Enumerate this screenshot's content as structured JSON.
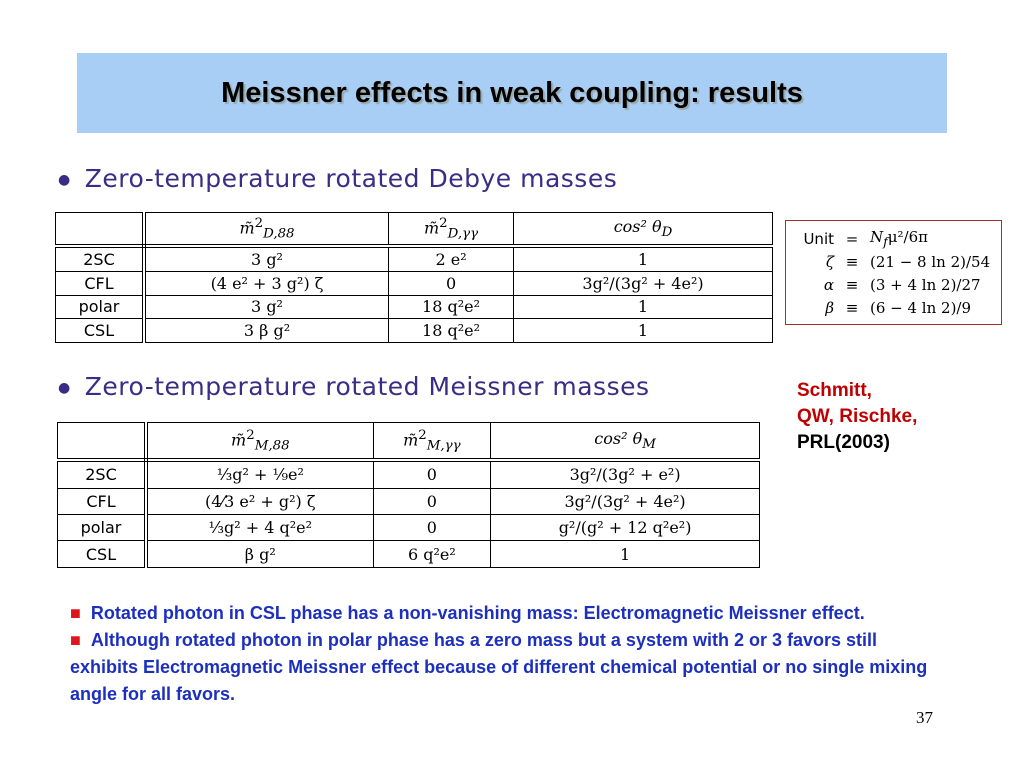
{
  "title": "Meissner effects in weak coupling: results",
  "sections": [
    {
      "heading": "Zero-temperature rotated Debye masses",
      "table": {
        "columns": [
          {
            "main": "m̃",
            "sup": "2",
            "sub": "D,88"
          },
          {
            "main": "m̃",
            "sup": "2",
            "sub": "D,γγ"
          },
          {
            "main": "cos² θ",
            "sub": "D"
          }
        ],
        "rows": [
          [
            "2SC",
            "3 g²",
            "2 e²",
            "1"
          ],
          [
            "CFL",
            "(4 e² + 3 g²) ζ",
            "0",
            "3g²/(3g² + 4e²)"
          ],
          [
            "polar",
            "3 g²",
            "18 q²e²",
            "1"
          ],
          [
            "CSL",
            "3 β g²",
            "18 q²e²",
            "1"
          ]
        ]
      }
    },
    {
      "heading": "Zero-temperature rotated Meissner masses",
      "table": {
        "columns": [
          {
            "main": "m̃",
            "sup": "2",
            "sub": "M,88"
          },
          {
            "main": "m̃",
            "sup": "2",
            "sub": "M,γγ"
          },
          {
            "main": "cos² θ",
            "sub": "M"
          }
        ],
        "rows": [
          [
            "2SC",
            "⅓g² + ⅑e²",
            "0",
            "3g²/(3g² + e²)"
          ],
          [
            "CFL",
            "(4⁄3 e² + g²) ζ",
            "0",
            "3g²/(3g² + 4e²)"
          ],
          [
            "polar",
            "⅓g² + 4 q²e²",
            "0",
            "g²/(g² + 12 q²e²)"
          ],
          [
            "CSL",
            "β g²",
            "6 q²e²",
            "1"
          ]
        ]
      }
    }
  ],
  "unit_box": {
    "lines": [
      [
        "Unit",
        "=",
        {
          "main": "N",
          "sub": "f",
          "rest": "μ²/6π"
        }
      ],
      [
        "ζ",
        "≡",
        "(21 − 8 ln 2)/54"
      ],
      [
        "α",
        "≡",
        "(3 + 4 ln 2)/27"
      ],
      [
        "β",
        "≡",
        "(6 − 4 ln 2)/9"
      ]
    ]
  },
  "citation": {
    "authors": [
      "Schmitt,",
      "QW, Rischke,"
    ],
    "journal": "PRL(2003)"
  },
  "notes": [
    "Rotated photon in CSL phase has a non-vanishing mass: Electromagnetic Meissner effect.",
    "Although rotated photon in polar phase has a zero mass but a system with 2 or 3 favors still exhibits Electromagnetic Meissner effect because of different chemical potential or no single mixing angle for all favors."
  ],
  "page_number": "37"
}
